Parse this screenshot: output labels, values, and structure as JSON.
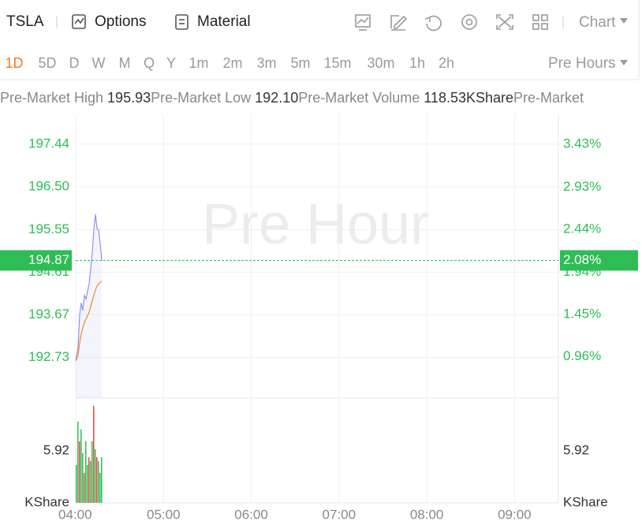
{
  "toolbar": {
    "symbol": "TSLA",
    "options": "Options",
    "material": "Material",
    "chart": "Chart"
  },
  "timeframes": {
    "items": [
      "1D",
      "5D",
      "D",
      "W",
      "M",
      "Q",
      "Y",
      "1m",
      "2m",
      "3m",
      "5m",
      "15m",
      "30m",
      "1h",
      "2h"
    ],
    "active": 0,
    "session": "Pre Hours"
  },
  "info": [
    {
      "label": "Pre-Market High",
      "value": "195.93"
    },
    {
      "label": "Pre-Market Low",
      "value": "192.10"
    },
    {
      "label": "Pre-Market Volume",
      "value": "118.53KShare"
    },
    {
      "label": "Pre-Market"
    }
  ],
  "chart_data": {
    "type": "line",
    "watermark": "Pre Hour",
    "x": [
      4.0,
      4.027,
      4.045,
      4.063,
      4.081,
      4.099,
      4.117,
      4.135,
      4.153,
      4.171,
      4.189,
      4.207,
      4.225,
      4.243,
      4.261,
      4.279,
      4.297
    ],
    "series": [
      {
        "color": "#8f93e8",
        "values": [
          192.65,
          192.97,
          193.67,
          193.93,
          193.76,
          194.1,
          194.02,
          194.19,
          194.36,
          194.7,
          195.05,
          195.57,
          195.89,
          195.57,
          195.54,
          195.23,
          194.87
        ]
      },
      {
        "color": "#f08a2c",
        "values": [
          192.65,
          192.78,
          193.05,
          193.25,
          193.38,
          193.5,
          193.58,
          193.65,
          193.72,
          193.85,
          193.98,
          194.1,
          194.22,
          194.3,
          194.35,
          194.39,
          194.41
        ]
      }
    ],
    "xlim": [
      4,
      9.5
    ],
    "xticks": [
      {
        "value": 4,
        "label": "04:00"
      },
      {
        "value": 5,
        "label": "05:00"
      },
      {
        "value": 6,
        "label": "06:00"
      },
      {
        "value": 7,
        "label": "07:00"
      },
      {
        "value": 8,
        "label": "08:00"
      },
      {
        "value": 9,
        "label": "09:00"
      }
    ],
    "ylim": [
      191.83,
      198.1
    ],
    "yticks": [
      197.44,
      {
        "value": 196.5,
        "label": "196.50"
      },
      195.55,
      194.61,
      193.67,
      192.73
    ],
    "y2lim": [
      0.48,
      3.78
    ],
    "y2ticks": [
      {
        "value": 3.43,
        "label": "3.43%"
      },
      {
        "value": 2.93,
        "label": "2.93%"
      },
      {
        "value": 2.44,
        "label": "2.44%"
      },
      {
        "value": 1.94,
        "label": "1.94%"
      },
      {
        "value": 1.45,
        "label": "1.45%"
      },
      {
        "value": 0.96,
        "label": "0.96%"
      }
    ],
    "last_price": {
      "value": 194.87,
      "y2_value": 2.08,
      "y2_label": "2.08%",
      "color": "#2ebd55"
    },
    "grid": true,
    "volume": {
      "x": [
        4.0,
        4.018,
        4.036,
        4.054,
        4.072,
        4.09,
        4.108,
        4.126,
        4.144,
        4.162,
        4.18,
        4.198,
        4.216,
        4.234,
        4.252,
        4.27,
        4.288
      ],
      "values": [
        4.31,
        9.24,
        7.0,
        8.34,
        5.65,
        3.41,
        7.0,
        4.31,
        5.2,
        4.75,
        7.0,
        11.03,
        6.1,
        5.2,
        4.75,
        3.41,
        5.2
      ],
      "colors": [
        "#2ebd55",
        "#2ebd55",
        "#e8453c",
        "#2ebd55",
        "#2ebd55",
        "#e8453c",
        "#2ebd55",
        "#2ebd55",
        "#e8453c",
        "#2ebd55",
        "#2ebd55",
        "#e8453c",
        "#2ebd55",
        "#e8453c",
        "#2ebd55",
        "#2ebd55",
        "#2ebd55"
      ],
      "ylim": [
        0,
        11.93
      ],
      "yticks": [
        5.92
      ],
      "unit": "KShare"
    }
  }
}
